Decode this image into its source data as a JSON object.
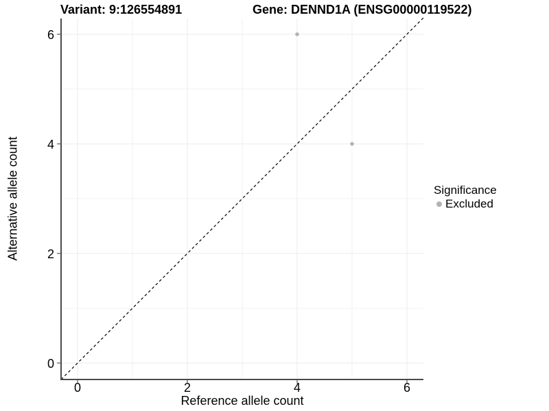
{
  "chart_data": {
    "type": "scatter",
    "titles": {
      "left": "Variant: 9:126554891",
      "right": "Gene: DENND1A (ENSG00000119522)"
    },
    "xlabel": "Reference allele count",
    "ylabel": "Alternative allele count",
    "xlim": [
      -0.3,
      6.3
    ],
    "ylim": [
      -0.3,
      6.3
    ],
    "x_ticks": [
      0,
      2,
      4,
      6
    ],
    "y_ticks": [
      0,
      2,
      4,
      6
    ],
    "x_minor_gridlines": [
      1,
      3,
      5
    ],
    "y_minor_gridlines": [
      1,
      3,
      5
    ],
    "grid": true,
    "identity_line": {
      "style": "dashed",
      "color": "#000000",
      "equation": "y = x"
    },
    "series": [
      {
        "name": "Excluded",
        "color": "#b3b3b3",
        "points": [
          {
            "x": 4,
            "y": 6
          },
          {
            "x": 5,
            "y": 4
          }
        ]
      }
    ],
    "legend": {
      "title": "Significance",
      "position": "right",
      "entries": [
        {
          "label": "Excluded",
          "color": "#b3b3b3",
          "marker": "circle"
        }
      ]
    }
  },
  "colors": {
    "background": "#ffffff",
    "grid_major": "#ebebeb",
    "grid_minor": "#f2f2f2",
    "axis_line": "#4a4a4a",
    "tick_mark": "#333333",
    "text": "#000000",
    "point": "#b3b3b3"
  }
}
